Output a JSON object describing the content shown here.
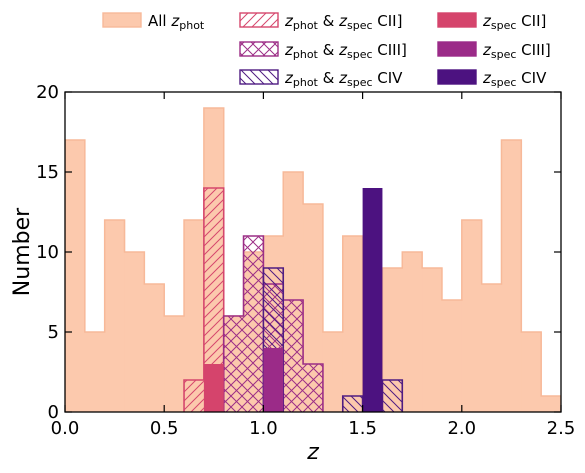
{
  "chart_data": {
    "type": "bar",
    "xlabel": "z",
    "ylabel": "Number",
    "xlim": [
      0.0,
      2.5
    ],
    "ylim": [
      0,
      20
    ],
    "xticks": [
      "0.0",
      "0.5",
      "1.0",
      "1.5",
      "2.0",
      "2.5"
    ],
    "yticks": [
      "0",
      "5",
      "10",
      "15",
      "20"
    ],
    "bin_edges": [
      0.0,
      0.1,
      0.2,
      0.3,
      0.4,
      0.5,
      0.6,
      0.7,
      0.8,
      0.9,
      1.0,
      1.1,
      1.2,
      1.3,
      1.4,
      1.5,
      1.6,
      1.7,
      1.8,
      1.9,
      2.0,
      2.1,
      2.2,
      2.3,
      2.4,
      2.5
    ],
    "series": [
      {
        "name": "All z_phot",
        "style": "filled-step",
        "color": "#fcc9ad",
        "values": [
          17,
          5,
          12,
          10,
          8,
          6,
          12,
          19,
          6,
          10,
          11,
          15,
          13,
          5,
          11,
          0,
          9,
          10,
          9,
          7,
          12,
          8,
          17,
          5,
          1
        ]
      },
      {
        "name": "z_phot & z_spec CII]",
        "style": "hatch-diagonal",
        "color": "#d5476d",
        "values": [
          0,
          0,
          0,
          0,
          0,
          0,
          2,
          14,
          0,
          0,
          0,
          0,
          0,
          0,
          0,
          0,
          0,
          0,
          0,
          0,
          0,
          0,
          0,
          0,
          0
        ]
      },
      {
        "name": "z_phot & z_spec CIII]",
        "style": "hatch-cross",
        "color": "#9c2e86",
        "values": [
          0,
          0,
          0,
          0,
          0,
          0,
          0,
          0,
          6,
          11,
          8,
          7,
          3,
          0,
          0,
          0,
          0,
          0,
          0,
          0,
          0,
          0,
          0,
          0,
          0
        ]
      },
      {
        "name": "z_phot & z_spec CIV",
        "style": "hatch-backslash",
        "color": "#4f1c82",
        "values": [
          0,
          0,
          0,
          0,
          0,
          0,
          0,
          0,
          0,
          0,
          9,
          0,
          0,
          0,
          1,
          0,
          2,
          0,
          0,
          0,
          0,
          0,
          0,
          0,
          0
        ]
      },
      {
        "name": "z_spec CII]",
        "style": "solid-bar",
        "color": "#d5446c",
        "bars": [
          {
            "center": 0.75,
            "width": 0.1,
            "value": 3
          }
        ]
      },
      {
        "name": "z_spec CIII]",
        "style": "solid-bar",
        "color": "#9b2b88",
        "bars": [
          {
            "center": 1.05,
            "width": 0.1,
            "value": 4
          }
        ]
      },
      {
        "name": "z_spec CIV",
        "style": "solid-bar",
        "color": "#4c1280",
        "bars": [
          {
            "center": 1.55,
            "width": 0.1,
            "value": 14
          }
        ]
      }
    ],
    "legend": {
      "placement": "top, above plot, 3 columns",
      "entries": [
        {
          "main": "All ",
          "var": "z",
          "sub": "phot",
          "suffix": ""
        },
        {
          "main": "",
          "var": "z",
          "sub": "phot",
          "amp": " & ",
          "var2": "z",
          "sub2": "spec",
          "suffix": " CII]"
        },
        {
          "main": "",
          "var": "z",
          "sub": "spec",
          "suffix": " CII]"
        },
        {
          "main": "",
          "var": "z",
          "sub": "phot",
          "amp": " & ",
          "var2": "z",
          "sub2": "spec",
          "suffix": " CIII]"
        },
        {
          "main": "",
          "var": "z",
          "sub": "spec",
          "suffix": " CIII]"
        },
        {
          "main": "",
          "var": "z",
          "sub": "phot",
          "amp": " & ",
          "var2": "z",
          "sub2": "spec",
          "suffix": " CIV"
        },
        {
          "main": "",
          "var": "z",
          "sub": "spec",
          "suffix": " CIV"
        }
      ]
    }
  }
}
